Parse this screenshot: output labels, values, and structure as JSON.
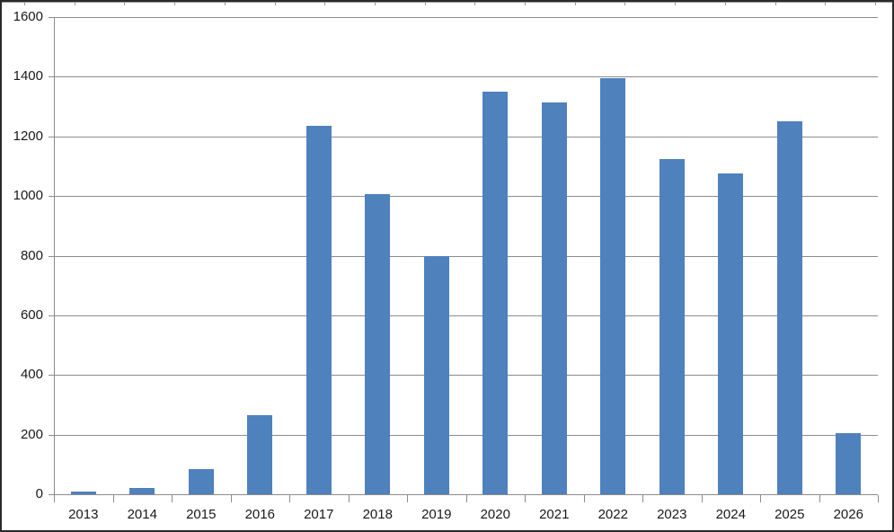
{
  "chart_data": {
    "type": "bar",
    "title": "",
    "xlabel": "",
    "ylabel": "",
    "categories": [
      "2013",
      "2014",
      "2015",
      "2016",
      "2017",
      "2018",
      "2019",
      "2020",
      "2021",
      "2022",
      "2023",
      "2024",
      "2025",
      "2026"
    ],
    "values": [
      10,
      20,
      85,
      265,
      1235,
      1005,
      800,
      1350,
      1315,
      1395,
      1125,
      1075,
      1250,
      205
    ],
    "ylim": [
      0,
      1600
    ],
    "yticks": [
      0,
      200,
      400,
      600,
      800,
      1000,
      1200,
      1400,
      1600
    ],
    "grid": true,
    "legend": false,
    "bar_color": "#4f81bd",
    "gridline_color": "#8c8c8c",
    "axis_color": "#8c8c8c",
    "tick_label_color": "#191919",
    "background_color": "#ffffff",
    "border_color": "#2a2a2a"
  }
}
